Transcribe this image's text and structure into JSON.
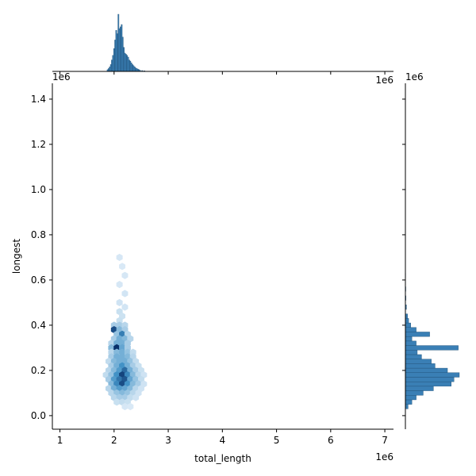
{
  "chart_data": {
    "type": "hexbin-joint",
    "xlabel": "total_length",
    "ylabel": "longest",
    "x_offset_label": "1e6",
    "y_offset_label": "1e6",
    "xlim": [
      0.86,
      7.16
    ],
    "ylim": [
      -0.06,
      1.47
    ],
    "x_ticks": [
      1,
      2,
      3,
      4,
      5,
      6,
      7
    ],
    "y_ticks": [
      0.0,
      0.2,
      0.4,
      0.6,
      0.8,
      1.0,
      1.2,
      1.4
    ],
    "x_tick_labels": [
      "1",
      "2",
      "3",
      "4",
      "5",
      "6",
      "7"
    ],
    "y_tick_labels": [
      "0.0",
      "0.2",
      "0.4",
      "0.6",
      "0.8",
      "1.0",
      "1.2",
      "1.4"
    ],
    "colors": {
      "light": "#eaf3fb",
      "dark": "#08306b",
      "hist": "#3a7fb5",
      "hist_edge": "#1f4f75"
    },
    "hexbin": {
      "bins": [
        {
          "x": 2.1,
          "y": 0.7,
          "c": 0.06
        },
        {
          "x": 2.15,
          "y": 0.66,
          "c": 0.05
        },
        {
          "x": 2.2,
          "y": 0.62,
          "c": 0.06
        },
        {
          "x": 2.1,
          "y": 0.58,
          "c": 0.06
        },
        {
          "x": 2.2,
          "y": 0.54,
          "c": 0.07
        },
        {
          "x": 2.1,
          "y": 0.5,
          "c": 0.08
        },
        {
          "x": 2.2,
          "y": 0.48,
          "c": 0.07
        },
        {
          "x": 2.1,
          "y": 0.46,
          "c": 0.1
        },
        {
          "x": 2.15,
          "y": 0.44,
          "c": 0.09
        },
        {
          "x": 2.1,
          "y": 0.42,
          "c": 0.1
        },
        {
          "x": 2.0,
          "y": 0.4,
          "c": 0.2
        },
        {
          "x": 2.1,
          "y": 0.4,
          "c": 0.2
        },
        {
          "x": 2.2,
          "y": 0.4,
          "c": 0.15
        },
        {
          "x": 2.0,
          "y": 0.38,
          "c": 0.85
        },
        {
          "x": 2.1,
          "y": 0.38,
          "c": 0.3
        },
        {
          "x": 2.2,
          "y": 0.38,
          "c": 0.2
        },
        {
          "x": 2.05,
          "y": 0.36,
          "c": 0.25
        },
        {
          "x": 2.15,
          "y": 0.36,
          "c": 0.6
        },
        {
          "x": 2.25,
          "y": 0.36,
          "c": 0.15
        },
        {
          "x": 2.0,
          "y": 0.34,
          "c": 0.2
        },
        {
          "x": 2.1,
          "y": 0.34,
          "c": 0.35
        },
        {
          "x": 2.2,
          "y": 0.34,
          "c": 0.3
        },
        {
          "x": 2.3,
          "y": 0.34,
          "c": 0.15
        },
        {
          "x": 1.95,
          "y": 0.32,
          "c": 0.15
        },
        {
          "x": 2.05,
          "y": 0.32,
          "c": 0.35
        },
        {
          "x": 2.15,
          "y": 0.32,
          "c": 0.35
        },
        {
          "x": 2.25,
          "y": 0.32,
          "c": 0.2
        },
        {
          "x": 1.95,
          "y": 0.3,
          "c": 0.3
        },
        {
          "x": 2.05,
          "y": 0.3,
          "c": 1.0
        },
        {
          "x": 2.15,
          "y": 0.3,
          "c": 0.4
        },
        {
          "x": 2.25,
          "y": 0.3,
          "c": 0.2
        },
        {
          "x": 1.95,
          "y": 0.28,
          "c": 0.15
        },
        {
          "x": 2.05,
          "y": 0.28,
          "c": 0.3
        },
        {
          "x": 2.15,
          "y": 0.28,
          "c": 0.35
        },
        {
          "x": 2.25,
          "y": 0.28,
          "c": 0.25
        },
        {
          "x": 2.35,
          "y": 0.28,
          "c": 0.12
        },
        {
          "x": 1.95,
          "y": 0.26,
          "c": 0.2
        },
        {
          "x": 2.05,
          "y": 0.26,
          "c": 0.35
        },
        {
          "x": 2.15,
          "y": 0.26,
          "c": 0.35
        },
        {
          "x": 2.25,
          "y": 0.26,
          "c": 0.3
        },
        {
          "x": 2.35,
          "y": 0.26,
          "c": 0.15
        },
        {
          "x": 1.9,
          "y": 0.24,
          "c": 0.12
        },
        {
          "x": 2.0,
          "y": 0.24,
          "c": 0.3
        },
        {
          "x": 2.1,
          "y": 0.24,
          "c": 0.35
        },
        {
          "x": 2.2,
          "y": 0.24,
          "c": 0.35
        },
        {
          "x": 2.3,
          "y": 0.24,
          "c": 0.25
        },
        {
          "x": 2.4,
          "y": 0.24,
          "c": 0.12
        },
        {
          "x": 1.95,
          "y": 0.22,
          "c": 0.2
        },
        {
          "x": 2.05,
          "y": 0.22,
          "c": 0.35
        },
        {
          "x": 2.15,
          "y": 0.22,
          "c": 0.5
        },
        {
          "x": 2.25,
          "y": 0.22,
          "c": 0.35
        },
        {
          "x": 2.35,
          "y": 0.22,
          "c": 0.2
        },
        {
          "x": 2.45,
          "y": 0.22,
          "c": 0.1
        },
        {
          "x": 1.9,
          "y": 0.2,
          "c": 0.15
        },
        {
          "x": 2.0,
          "y": 0.2,
          "c": 0.3
        },
        {
          "x": 2.1,
          "y": 0.2,
          "c": 0.45
        },
        {
          "x": 2.2,
          "y": 0.2,
          "c": 0.7
        },
        {
          "x": 2.3,
          "y": 0.2,
          "c": 0.35
        },
        {
          "x": 2.4,
          "y": 0.2,
          "c": 0.2
        },
        {
          "x": 2.5,
          "y": 0.2,
          "c": 0.1
        },
        {
          "x": 1.85,
          "y": 0.18,
          "c": 0.12
        },
        {
          "x": 1.95,
          "y": 0.18,
          "c": 0.25
        },
        {
          "x": 2.05,
          "y": 0.18,
          "c": 0.5
        },
        {
          "x": 2.15,
          "y": 0.18,
          "c": 0.9
        },
        {
          "x": 2.25,
          "y": 0.18,
          "c": 0.55
        },
        {
          "x": 2.35,
          "y": 0.18,
          "c": 0.3
        },
        {
          "x": 2.45,
          "y": 0.18,
          "c": 0.15
        },
        {
          "x": 2.55,
          "y": 0.18,
          "c": 0.08
        },
        {
          "x": 1.9,
          "y": 0.16,
          "c": 0.2
        },
        {
          "x": 2.0,
          "y": 0.16,
          "c": 0.45
        },
        {
          "x": 2.1,
          "y": 0.16,
          "c": 0.65
        },
        {
          "x": 2.2,
          "y": 0.16,
          "c": 0.8
        },
        {
          "x": 2.3,
          "y": 0.16,
          "c": 0.4
        },
        {
          "x": 2.4,
          "y": 0.16,
          "c": 0.25
        },
        {
          "x": 2.5,
          "y": 0.16,
          "c": 0.12
        },
        {
          "x": 1.95,
          "y": 0.14,
          "c": 0.3
        },
        {
          "x": 2.05,
          "y": 0.14,
          "c": 0.55
        },
        {
          "x": 2.15,
          "y": 0.14,
          "c": 0.85
        },
        {
          "x": 2.25,
          "y": 0.14,
          "c": 0.5
        },
        {
          "x": 2.35,
          "y": 0.14,
          "c": 0.3
        },
        {
          "x": 2.45,
          "y": 0.14,
          "c": 0.2
        },
        {
          "x": 2.55,
          "y": 0.14,
          "c": 0.08
        },
        {
          "x": 1.9,
          "y": 0.12,
          "c": 0.15
        },
        {
          "x": 2.0,
          "y": 0.12,
          "c": 0.35
        },
        {
          "x": 2.1,
          "y": 0.12,
          "c": 0.45
        },
        {
          "x": 2.2,
          "y": 0.12,
          "c": 0.4
        },
        {
          "x": 2.3,
          "y": 0.12,
          "c": 0.3
        },
        {
          "x": 2.4,
          "y": 0.12,
          "c": 0.15
        },
        {
          "x": 2.5,
          "y": 0.12,
          "c": 0.08
        },
        {
          "x": 1.95,
          "y": 0.1,
          "c": 0.15
        },
        {
          "x": 2.05,
          "y": 0.1,
          "c": 0.25
        },
        {
          "x": 2.15,
          "y": 0.1,
          "c": 0.3
        },
        {
          "x": 2.25,
          "y": 0.1,
          "c": 0.25
        },
        {
          "x": 2.35,
          "y": 0.1,
          "c": 0.15
        },
        {
          "x": 2.45,
          "y": 0.1,
          "c": 0.08
        },
        {
          "x": 2.0,
          "y": 0.08,
          "c": 0.15
        },
        {
          "x": 2.1,
          "y": 0.08,
          "c": 0.2
        },
        {
          "x": 2.2,
          "y": 0.08,
          "c": 0.2
        },
        {
          "x": 2.3,
          "y": 0.08,
          "c": 0.12
        },
        {
          "x": 2.4,
          "y": 0.08,
          "c": 0.08
        },
        {
          "x": 2.05,
          "y": 0.06,
          "c": 0.1
        },
        {
          "x": 2.15,
          "y": 0.06,
          "c": 0.12
        },
        {
          "x": 2.25,
          "y": 0.06,
          "c": 0.1
        },
        {
          "x": 2.2,
          "y": 0.04,
          "c": 0.06
        },
        {
          "x": 2.3,
          "y": 0.04,
          "c": 0.05
        }
      ]
    },
    "marginal_x": {
      "bin_width": 0.02,
      "bars": [
        {
          "x": 1.88,
          "h": 0.03
        },
        {
          "x": 1.9,
          "h": 0.05
        },
        {
          "x": 1.92,
          "h": 0.08
        },
        {
          "x": 1.94,
          "h": 0.12
        },
        {
          "x": 1.96,
          "h": 0.2
        },
        {
          "x": 1.98,
          "h": 0.28
        },
        {
          "x": 2.0,
          "h": 0.4
        },
        {
          "x": 2.02,
          "h": 0.55
        },
        {
          "x": 2.04,
          "h": 0.72
        },
        {
          "x": 2.06,
          "h": 0.66
        },
        {
          "x": 2.08,
          "h": 1.0
        },
        {
          "x": 2.1,
          "h": 0.75
        },
        {
          "x": 2.12,
          "h": 0.78
        },
        {
          "x": 2.14,
          "h": 0.82
        },
        {
          "x": 2.16,
          "h": 0.6
        },
        {
          "x": 2.18,
          "h": 0.42
        },
        {
          "x": 2.2,
          "h": 0.32
        },
        {
          "x": 2.22,
          "h": 0.3
        },
        {
          "x": 2.24,
          "h": 0.28
        },
        {
          "x": 2.26,
          "h": 0.25
        },
        {
          "x": 2.28,
          "h": 0.2
        },
        {
          "x": 2.3,
          "h": 0.18
        },
        {
          "x": 2.32,
          "h": 0.15
        },
        {
          "x": 2.34,
          "h": 0.12
        },
        {
          "x": 2.36,
          "h": 0.1
        },
        {
          "x": 2.38,
          "h": 0.08
        },
        {
          "x": 2.4,
          "h": 0.06
        },
        {
          "x": 2.42,
          "h": 0.05
        },
        {
          "x": 2.44,
          "h": 0.04
        },
        {
          "x": 2.46,
          "h": 0.03
        },
        {
          "x": 2.48,
          "h": 0.02
        },
        {
          "x": 2.52,
          "h": 0.015
        },
        {
          "x": 2.56,
          "h": 0.01
        }
      ]
    },
    "marginal_y": {
      "bin_width": 0.02,
      "bars": [
        {
          "y": 0.04,
          "w": 0.05
        },
        {
          "y": 0.06,
          "w": 0.12
        },
        {
          "y": 0.08,
          "w": 0.2
        },
        {
          "y": 0.1,
          "w": 0.33
        },
        {
          "y": 0.12,
          "w": 0.52
        },
        {
          "y": 0.14,
          "w": 0.85
        },
        {
          "y": 0.16,
          "w": 0.9
        },
        {
          "y": 0.18,
          "w": 1.0
        },
        {
          "y": 0.2,
          "w": 0.78
        },
        {
          "y": 0.22,
          "w": 0.55
        },
        {
          "y": 0.24,
          "w": 0.48
        },
        {
          "y": 0.26,
          "w": 0.3
        },
        {
          "y": 0.28,
          "w": 0.22
        },
        {
          "y": 0.3,
          "w": 0.98
        },
        {
          "y": 0.32,
          "w": 0.2
        },
        {
          "y": 0.34,
          "w": 0.12
        },
        {
          "y": 0.36,
          "w": 0.45
        },
        {
          "y": 0.38,
          "w": 0.2
        },
        {
          "y": 0.4,
          "w": 0.1
        },
        {
          "y": 0.42,
          "w": 0.06
        },
        {
          "y": 0.44,
          "w": 0.04
        },
        {
          "y": 0.48,
          "w": 0.02
        },
        {
          "y": 0.52,
          "w": 0.01
        },
        {
          "y": 0.56,
          "w": 0.008
        },
        {
          "y": 0.62,
          "w": 0.005
        },
        {
          "y": 0.7,
          "w": 0.004
        }
      ]
    }
  }
}
